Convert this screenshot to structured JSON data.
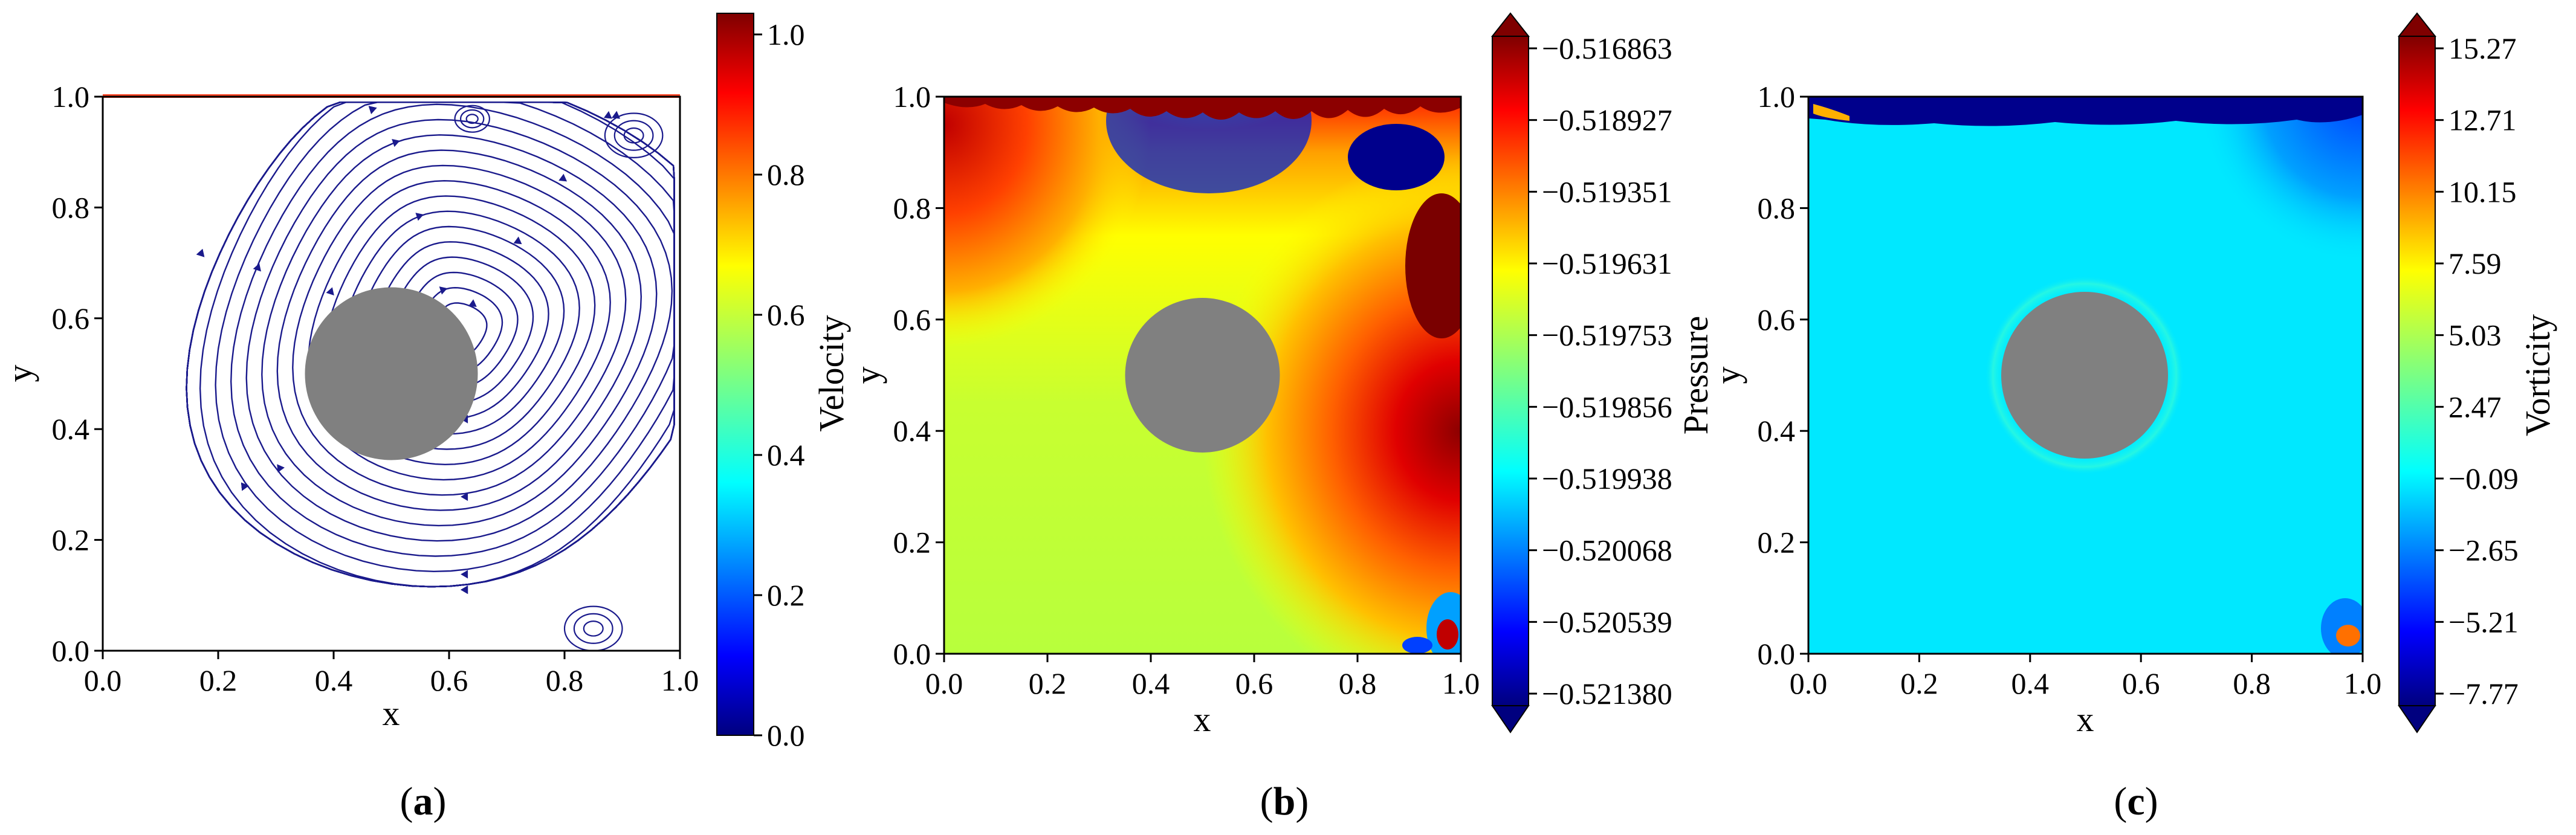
{
  "colors": {
    "jet": [
      "#00007f",
      "#0000ff",
      "#007fff",
      "#00ffff",
      "#7fff7f",
      "#ffff00",
      "#ff7f00",
      "#ff0000",
      "#7f0000"
    ],
    "obstacle": "#808080",
    "streamline": "#1a1a8c"
  },
  "chart_data": [
    {
      "type": "streamplot",
      "panel": "(a)",
      "panel_letter": "a",
      "xlabel": "x",
      "ylabel": "y",
      "xlim": [
        0.0,
        1.0
      ],
      "ylim": [
        0.0,
        1.0
      ],
      "xticks": [
        "0.0",
        "0.2",
        "0.4",
        "0.6",
        "0.8",
        "1.0"
      ],
      "yticks": [
        "0.0",
        "0.2",
        "0.4",
        "0.6",
        "0.8",
        "1.0"
      ],
      "obstacle": {
        "shape": "circle",
        "cx": 0.5,
        "cy": 0.5,
        "r": 0.15
      },
      "colorbar": {
        "label": "Velocity",
        "ticks": [
          "0.0",
          "0.2",
          "0.4",
          "0.6",
          "0.8",
          "1.0"
        ],
        "range": [
          0.0,
          1.0
        ]
      },
      "main_vortex_center": [
        0.62,
        0.58
      ]
    },
    {
      "type": "contour",
      "panel": "(b)",
      "panel_letter": "b",
      "xlabel": "x",
      "ylabel": "y",
      "xlim": [
        0.0,
        1.0
      ],
      "ylim": [
        0.0,
        1.0
      ],
      "xticks": [
        "0.0",
        "0.2",
        "0.4",
        "0.6",
        "0.8",
        "1.0"
      ],
      "yticks": [
        "0.0",
        "0.2",
        "0.4",
        "0.6",
        "0.8",
        "1.0"
      ],
      "obstacle": {
        "shape": "circle",
        "cx": 0.5,
        "cy": 0.5,
        "r": 0.15
      },
      "colorbar": {
        "label": "Pressure",
        "ticks": [
          "−0.516863",
          "−0.518927",
          "−0.519351",
          "−0.519631",
          "−0.519753",
          "−0.519856",
          "−0.519938",
          "−0.520068",
          "−0.520539",
          "−0.521380"
        ],
        "extend": "both"
      }
    },
    {
      "type": "contour",
      "panel": "(c)",
      "panel_letter": "c",
      "xlabel": "x",
      "ylabel": "y",
      "xlim": [
        0.0,
        1.0
      ],
      "ylim": [
        0.0,
        1.0
      ],
      "xticks": [
        "0.0",
        "0.2",
        "0.4",
        "0.6",
        "0.8",
        "1.0"
      ],
      "yticks": [
        "0.0",
        "0.2",
        "0.4",
        "0.6",
        "0.8",
        "1.0"
      ],
      "obstacle": {
        "shape": "circle",
        "cx": 0.5,
        "cy": 0.5,
        "r": 0.15
      },
      "colorbar": {
        "label": "Vorticity",
        "ticks": [
          "15.27",
          "12.71",
          "10.15",
          "7.59",
          "5.03",
          "2.47",
          "−0.09",
          "−2.65",
          "−5.21",
          "−7.77"
        ],
        "extend": "both"
      }
    }
  ]
}
